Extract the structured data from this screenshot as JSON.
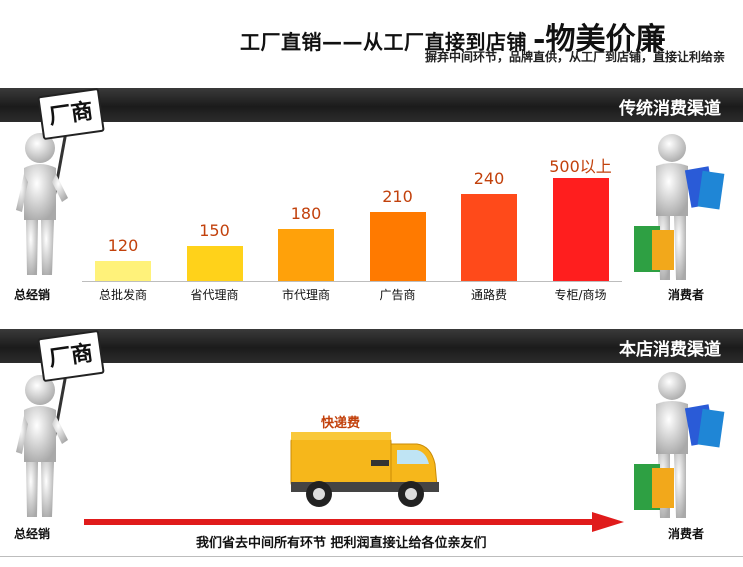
{
  "header": {
    "title": "工厂直销——从工厂直接到店铺",
    "title_big": "-物美价廉",
    "subtitle": "摒弃中间环节，品牌直供，从工厂到店铺，直接让利给亲"
  },
  "section1": {
    "band_title": "传统消费渠道",
    "sign_text": "厂商",
    "left_label": "总经销",
    "right_label": "消费者"
  },
  "section2": {
    "band_title": "本店消费渠道",
    "sign_text": "厂商",
    "left_label": "总经销",
    "right_label": "消费者",
    "truck_label": "快递费",
    "arrow_text": "我们省去中间所有环节 把利润直接让给各位亲友们",
    "arrow_color": "#e01b1b"
  },
  "chart_data": {
    "type": "bar",
    "categories": [
      "总批发商",
      "省代理商",
      "市代理商",
      "广告商",
      "通路费",
      "专柜/商场"
    ],
    "values": [
      120,
      150,
      180,
      210,
      240,
      500
    ],
    "value_labels": [
      "120",
      "150",
      "180",
      "210",
      "240",
      "500以上"
    ],
    "colors": [
      "#fff27a",
      "#ffd21a",
      "#ffa10a",
      "#ff7a00",
      "#ff4a1a",
      "#ff1e1e"
    ],
    "title": "",
    "xlabel": "",
    "ylabel": "",
    "grid": false
  }
}
